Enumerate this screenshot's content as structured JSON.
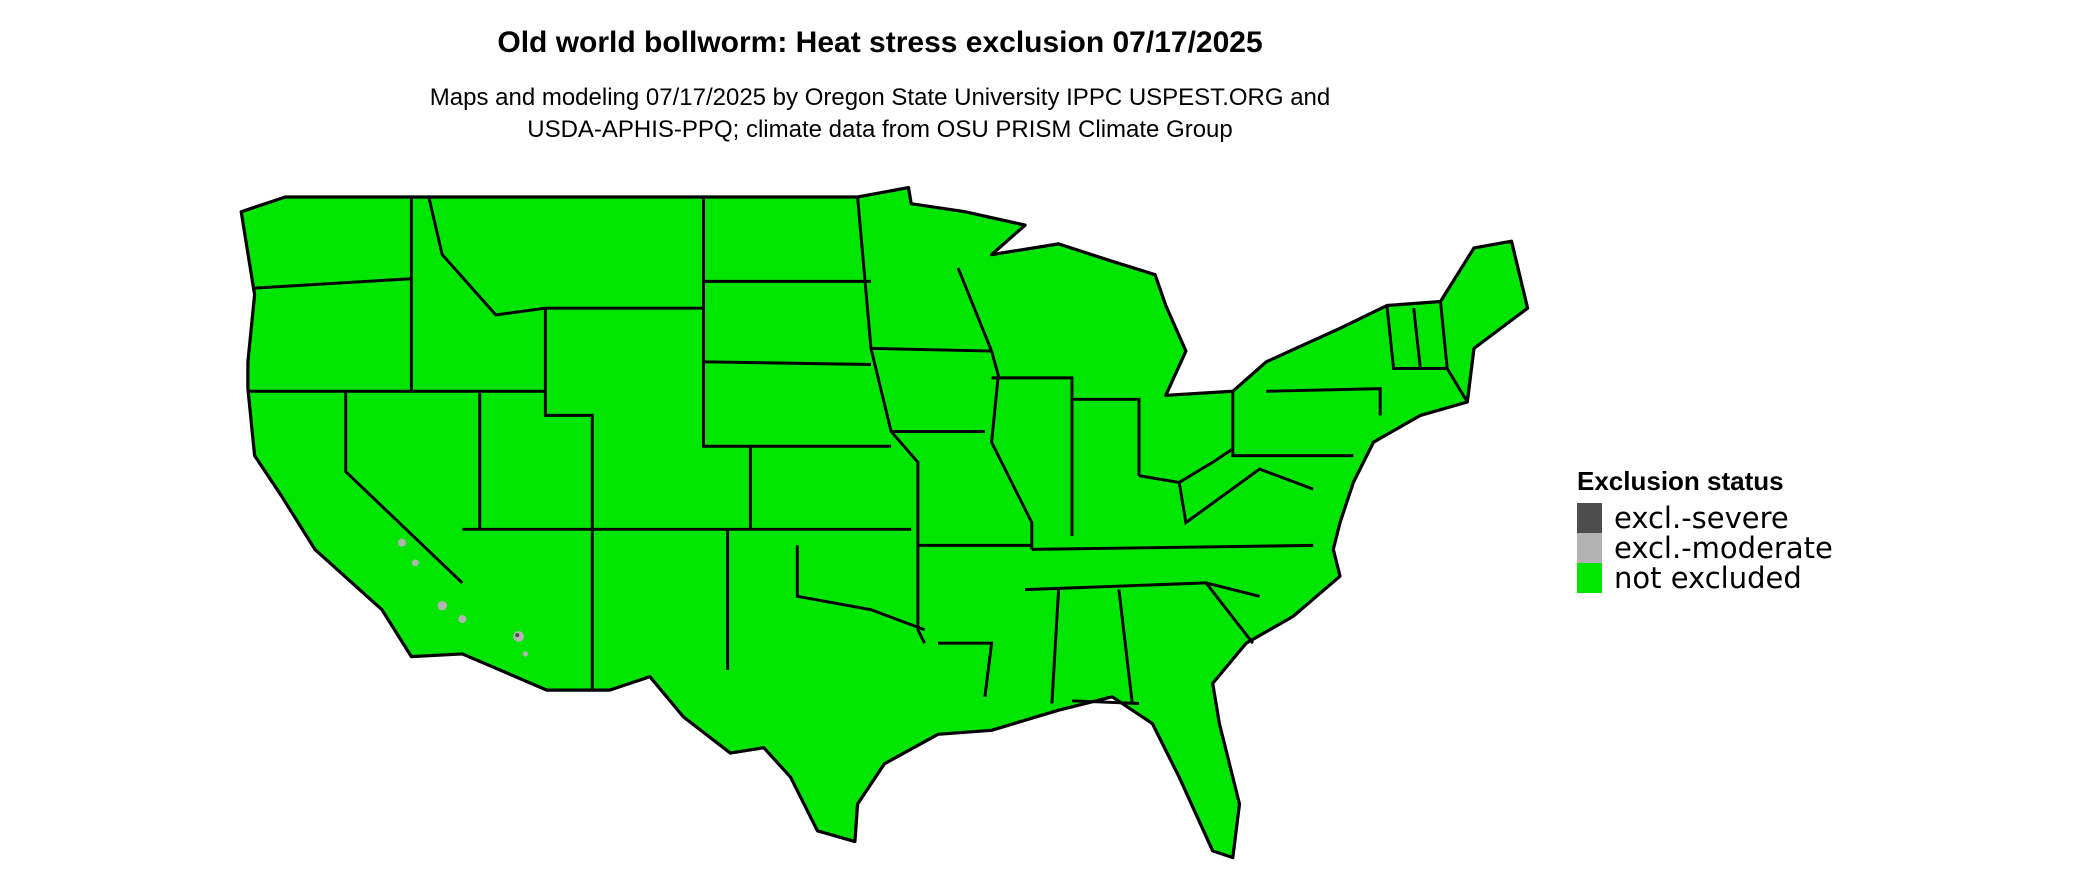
{
  "title": "Old world bollworm: Heat stress exclusion 07/17/2025",
  "subtitle_lines": [
    "Maps and modeling 07/17/2025 by Oregon State University IPPC USPEST.ORG and",
    "USDA-APHIS-PPQ; climate data from OSU PRISM Climate Group"
  ],
  "legend": {
    "title": "Exclusion status",
    "items": [
      {
        "label": "excl.-severe",
        "color": "#4d4d4d"
      },
      {
        "label": "excl.-moderate",
        "color": "#b3b3b3"
      },
      {
        "label": "not excluded",
        "color": "#00e600"
      }
    ]
  },
  "map": {
    "region": "Contiguous United States",
    "fill": "#00e600",
    "border": "#000000"
  }
}
